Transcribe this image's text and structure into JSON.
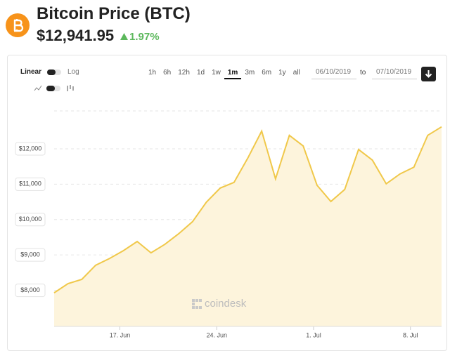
{
  "header": {
    "title": "Bitcoin Price",
    "symbol": "(BTC)",
    "price": "$12,941.95",
    "change": "1.97%"
  },
  "controls": {
    "scale_left": "Linear",
    "scale_right": "Log",
    "ranges": [
      "1h",
      "6h",
      "12h",
      "1d",
      "1w",
      "1m",
      "3m",
      "6m",
      "1y",
      "all"
    ],
    "selected_range": "1m",
    "from": "06/10/2019",
    "to_label": "to",
    "to": "07/10/2019"
  },
  "chart_data": {
    "type": "area-line",
    "color": "#f0c84a",
    "fill": "#fdf4dc",
    "watermark": "coindesk",
    "x": [
      12.25,
      13.25,
      14.25,
      15.25,
      16.25,
      17.25,
      18.25,
      19.25,
      20.25,
      21.25,
      22.25,
      23.25,
      24.25,
      25.25,
      26.25,
      27.25,
      28.25,
      29.25,
      30.25,
      31.25,
      32.25,
      33.25,
      34.25,
      35.25,
      36.25,
      37.25,
      38.25,
      39.25,
      40.25
    ],
    "values": [
      7930,
      8190,
      8310,
      8710,
      8900,
      9120,
      9380,
      9060,
      9300,
      9600,
      9940,
      10490,
      10890,
      11050,
      11740,
      12500,
      11150,
      12380,
      12080,
      10970,
      10510,
      10850,
      11980,
      11680,
      11010,
      11290,
      11480,
      12380,
      12620
    ],
    "xlim": [
      12.25,
      40.25
    ],
    "xticks": [
      {
        "value": 17,
        "label": "17. Jun"
      },
      {
        "value": 24,
        "label": "24. Jun"
      },
      {
        "value": 31,
        "label": "1. Jul"
      },
      {
        "value": 38,
        "label": "8. Jul"
      }
    ],
    "ylim": [
      6980,
      13070
    ],
    "yticks": [
      {
        "value": 8000,
        "label": "$8,000"
      },
      {
        "value": 9000,
        "label": "$9,000"
      },
      {
        "value": 10000,
        "label": "$10,000"
      },
      {
        "value": 11000,
        "label": "$11,000"
      },
      {
        "value": 12000,
        "label": "$12,000"
      }
    ],
    "grid": true
  }
}
